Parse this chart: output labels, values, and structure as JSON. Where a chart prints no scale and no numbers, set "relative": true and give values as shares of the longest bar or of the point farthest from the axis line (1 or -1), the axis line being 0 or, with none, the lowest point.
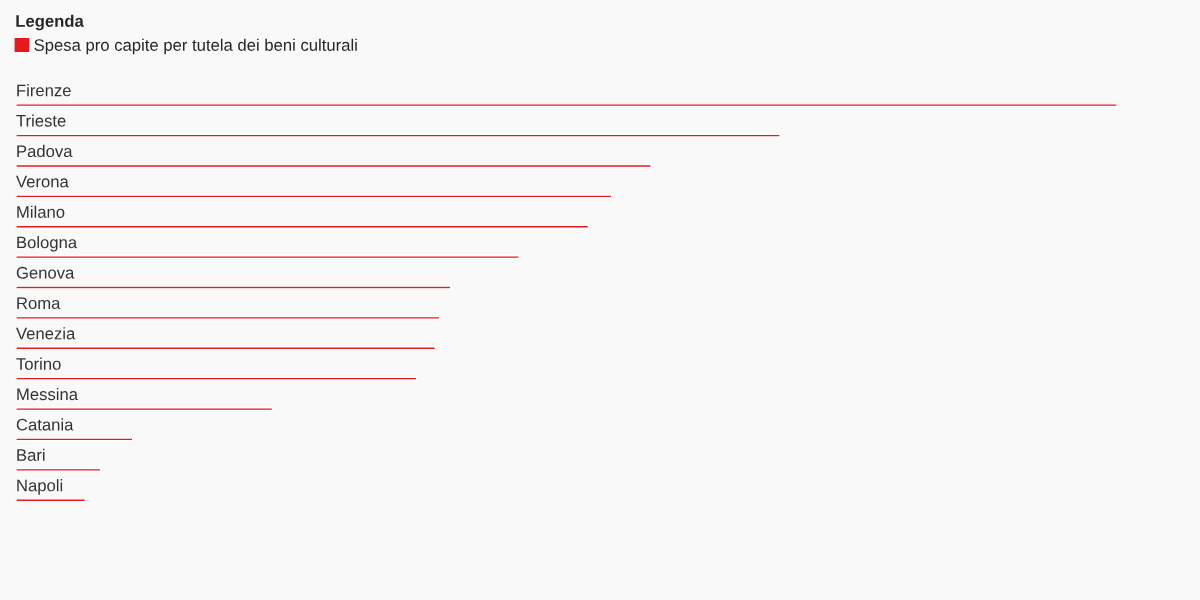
{
  "chart_data": {
    "type": "bar",
    "orientation": "horizontal",
    "relative": true,
    "legend_title": "Legenda",
    "legend": "top left",
    "categories": [
      "Firenze",
      "Trieste",
      "Padova",
      "Verona",
      "Milano",
      "Bologna",
      "Genova",
      "Roma",
      "Venezia",
      "Torino",
      "Messina",
      "Catania",
      "Bari",
      "Napoli"
    ],
    "series": [
      {
        "name": "Spesa pro capite per tutela dei beni culturali",
        "color": "#e8191c",
        "values": [
          1,
          0.694,
          0.577,
          0.541,
          0.52,
          0.457,
          0.395,
          0.385,
          0.381,
          0.364,
          0.233,
          0.106,
          0.077,
          0.063
        ]
      }
    ]
  }
}
